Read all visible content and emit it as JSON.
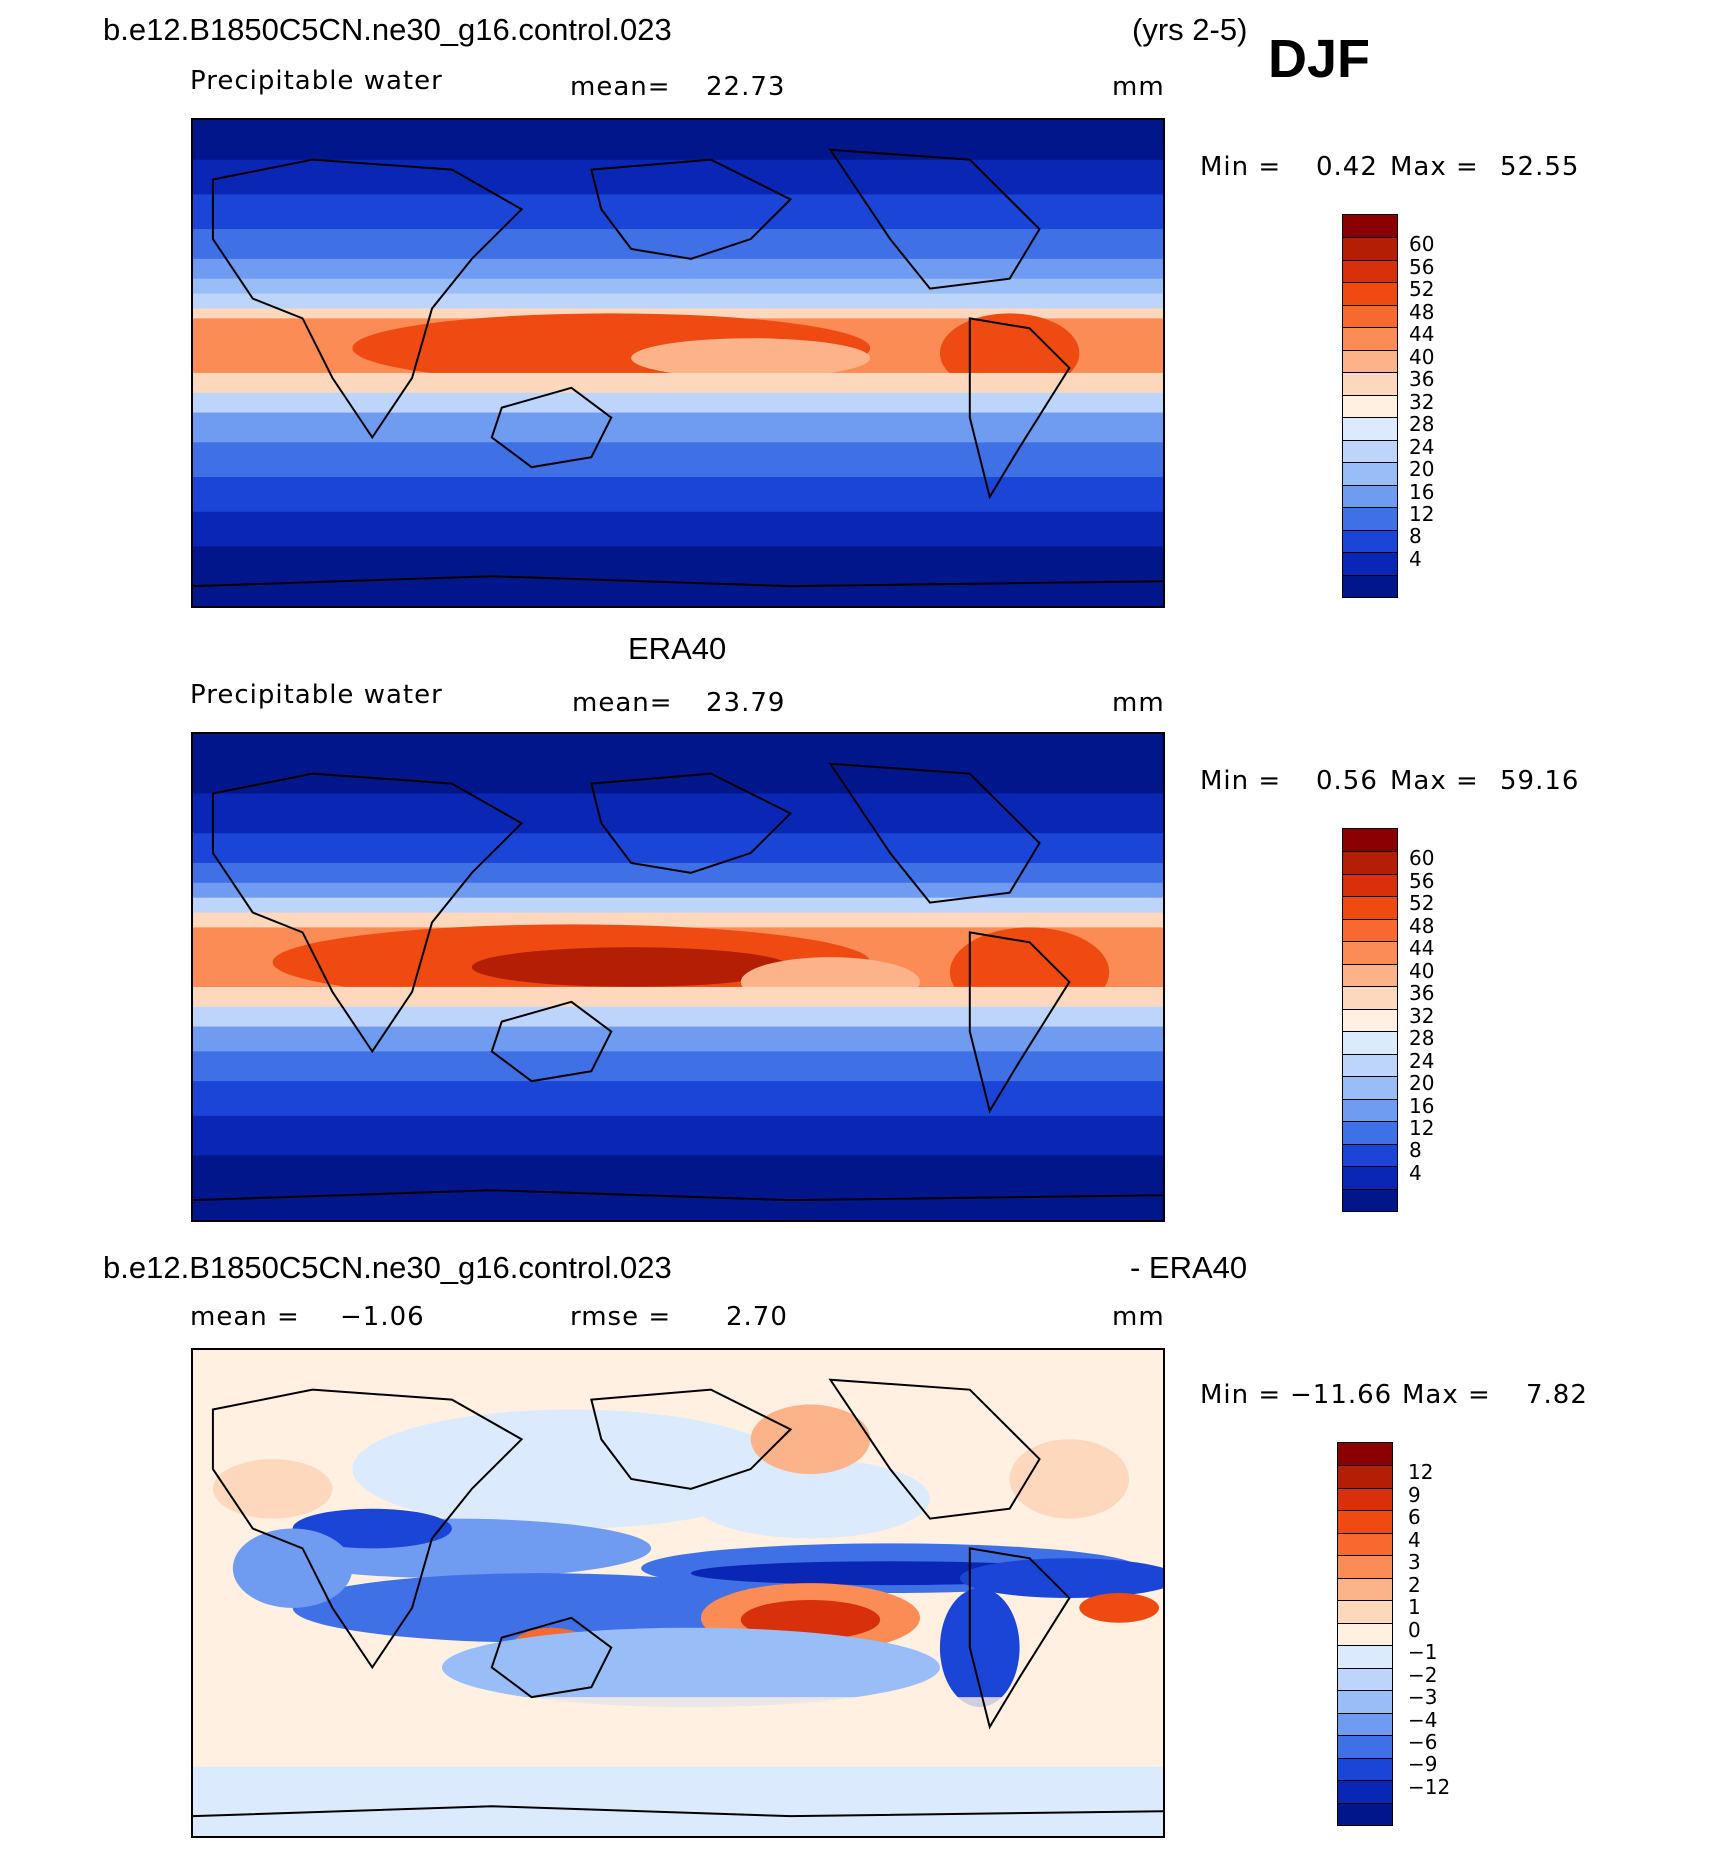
{
  "header": {
    "case_name": "b.e12.B1850C5CN.ne30_g16.control.023",
    "years": "(yrs 2-5)",
    "season": "DJF"
  },
  "panels": [
    {
      "id": "model",
      "title": "",
      "variable": "Precipitable water",
      "mean_label": "mean=",
      "mean_value": "22.73",
      "units": "mm",
      "min_label": "Min =",
      "min_value": "0.42",
      "max_label": "Max =",
      "max_value": "52.55"
    },
    {
      "id": "obs",
      "title": "ERA40",
      "variable": "Precipitable water",
      "mean_label": "mean=",
      "mean_value": "23.79",
      "units": "mm",
      "min_label": "Min =",
      "min_value": "0.56",
      "max_label": "Max =",
      "max_value": "59.16"
    },
    {
      "id": "diff",
      "title_left": "b.e12.B1850C5CN.ne30_g16.control.023",
      "title_right": "- ERA40",
      "mean_label": "mean =",
      "mean_value": "−1.06",
      "rmse_label": "rmse =",
      "rmse_value": "2.70",
      "units": "mm",
      "min_label": "Min =",
      "min_value": "−11.66",
      "max_label": "Max =",
      "max_value": "7.82"
    }
  ],
  "colorbars": {
    "abs_levels": [
      "60",
      "56",
      "52",
      "48",
      "44",
      "40",
      "36",
      "32",
      "28",
      "24",
      "20",
      "16",
      "12",
      "8",
      "4"
    ],
    "diff_levels": [
      "12",
      "9",
      "6",
      "4",
      "3",
      "2",
      "1",
      "0",
      "−1",
      "−2",
      "−3",
      "−4",
      "−6",
      "−9",
      "−12"
    ],
    "abs_colors": [
      "#8b0000",
      "#b41e05",
      "#d8300a",
      "#ee4a12",
      "#f7692e",
      "#fb8c55",
      "#fdb38a",
      "#fdd8bd",
      "#fff0e2",
      "#dceafd",
      "#bdd4fb",
      "#99bdf7",
      "#6f9bf0",
      "#3f70e6",
      "#1b45d6",
      "#0a26b4",
      "#00168a"
    ],
    "diff_colors": [
      "#8b0000",
      "#b41e05",
      "#d8300a",
      "#ee4a12",
      "#f7692e",
      "#fb8c55",
      "#fdb38a",
      "#fdd8bd",
      "#fff0e2",
      "#dceafd",
      "#bdd4fb",
      "#99bdf7",
      "#6f9bf0",
      "#3f70e6",
      "#1b45d6",
      "#0a26b4",
      "#00168a"
    ]
  }
}
